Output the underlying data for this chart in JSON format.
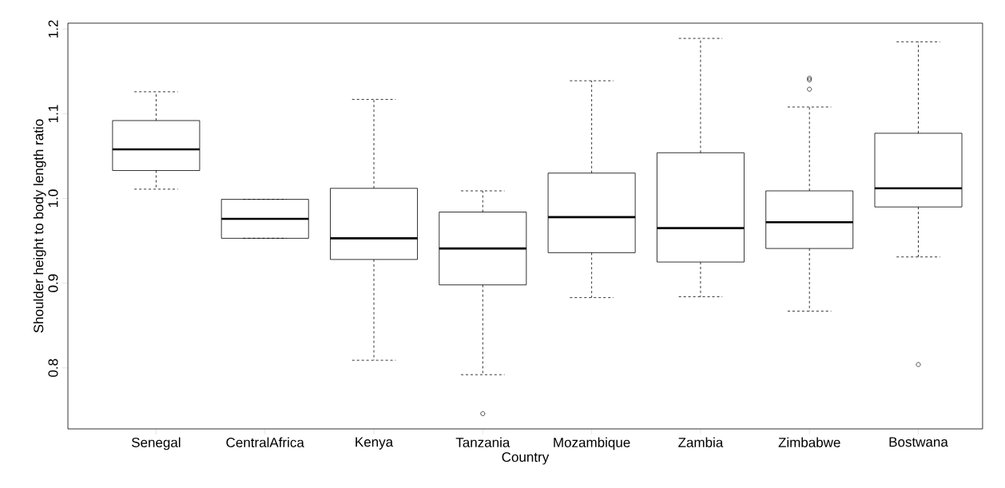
{
  "chart_data": {
    "type": "box",
    "xlabel": "Country",
    "ylabel": "Shoulder height to body length ratio",
    "categories": [
      "Senegal",
      "CentralAfrica",
      "Kenya",
      "Tanzania",
      "Mozambique",
      "Zambia",
      "Zimbabwe",
      "Bostwana"
    ],
    "boxes": [
      {
        "low": 1.011,
        "q1": 1.033,
        "median": 1.058,
        "q3": 1.092,
        "high": 1.126
      },
      {
        "low": 0.953,
        "q1": 0.953,
        "median": 0.976,
        "q3": 0.999,
        "high": 0.999
      },
      {
        "low": 0.809,
        "q1": 0.928,
        "median": 0.953,
        "q3": 1.012,
        "high": 1.117
      },
      {
        "low": 0.792,
        "q1": 0.898,
        "median": 0.941,
        "q3": 0.984,
        "high": 1.009,
        "outliers": [
          0.746
        ]
      },
      {
        "low": 0.883,
        "q1": 0.936,
        "median": 0.978,
        "q3": 1.03,
        "high": 1.139
      },
      {
        "low": 0.884,
        "q1": 0.925,
        "median": 0.965,
        "q3": 1.054,
        "high": 1.189
      },
      {
        "low": 0.867,
        "q1": 0.941,
        "median": 0.972,
        "q3": 1.009,
        "high": 1.108,
        "outliers": [
          1.142,
          1.14,
          1.129
        ]
      },
      {
        "low": 0.931,
        "q1": 0.99,
        "median": 1.012,
        "q3": 1.077,
        "high": 1.185,
        "outliers": [
          0.804
        ]
      }
    ],
    "ylim": [
      0.728,
      1.207
    ],
    "yticks": [
      0.8,
      0.9,
      {
        "value": 1.0,
        "label": "1.0"
      },
      1.1,
      1.2
    ]
  }
}
